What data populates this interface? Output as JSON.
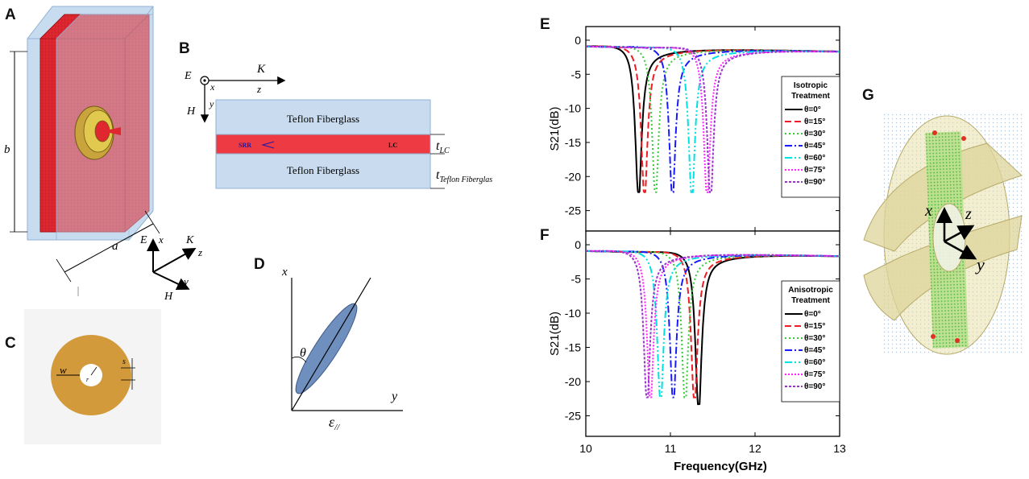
{
  "labels": {
    "A": "A",
    "B": "B",
    "C": "C",
    "D": "D",
    "E": "E",
    "F": "F",
    "G": "G"
  },
  "panelA": {
    "b": "b",
    "a": "a",
    "E": "E",
    "x": "x",
    "K": "K",
    "z": "z",
    "H": "H",
    "y": "y"
  },
  "panelB": {
    "E": "E",
    "x": "x",
    "K": "K",
    "z": "z",
    "H": "H",
    "y": "y",
    "layer_top": "Teflon Fiberglass",
    "layer_bottom": "Teflon Fiberglass",
    "srr": "SRR",
    "lc": "LC",
    "t_lc": "t",
    "t_lc_sub": "LC",
    "t_tf": "t",
    "t_tf_sub": "Teflon Fiberglas"
  },
  "panelC": {
    "w": "w",
    "r": "r",
    "s": "s"
  },
  "panelD": {
    "x": "x",
    "y": "y",
    "theta": "θ",
    "eps": "ε",
    "eps_sub": "//"
  },
  "panelG": {
    "x": "x",
    "z": "z",
    "y": "y"
  },
  "colors": {
    "lc": "#ee3b43",
    "substrate": "#c9dcef",
    "ring": "#d39a3c"
  },
  "chart_data": [
    {
      "type": "line",
      "panel": "E",
      "xlim": [
        10,
        13
      ],
      "ylim": [
        -28,
        2
      ],
      "xticks": [
        "10",
        "11",
        "12",
        "13"
      ],
      "yticks": [
        "0",
        "-5",
        "-10",
        "-15",
        "-20",
        "-25"
      ],
      "ylabel": "S21(dB)",
      "xlabel": "",
      "legend_title": [
        "Isotropic",
        "Treatment"
      ],
      "series": [
        {
          "name": "θ=0°",
          "f0": 10.62,
          "min": -22,
          "color": "#000000",
          "dash": ""
        },
        {
          "name": "θ=15°",
          "f0": 10.69,
          "min": -22,
          "color": "#ee1c24",
          "dash": "8,4"
        },
        {
          "name": "θ=30°",
          "f0": 10.82,
          "min": -22,
          "color": "#33cc33",
          "dash": "2,3"
        },
        {
          "name": "θ=45°",
          "f0": 11.02,
          "min": -22,
          "color": "#1a1aff",
          "dash": "9,3,2,3"
        },
        {
          "name": "θ=60°",
          "f0": 11.25,
          "min": -22,
          "color": "#00e0e0",
          "dash": "9,3,2,3,2,3"
        },
        {
          "name": "θ=75°",
          "f0": 11.43,
          "min": -22,
          "color": "#ff22ff",
          "dash": "2,2"
        },
        {
          "name": "θ=90°",
          "f0": 11.47,
          "min": -22,
          "color": "#9933cc",
          "dash": "3,2"
        }
      ]
    },
    {
      "type": "line",
      "panel": "F",
      "xlim": [
        10,
        13
      ],
      "ylim": [
        -28,
        2
      ],
      "xticks": [
        "10",
        "11",
        "12",
        "13"
      ],
      "yticks": [
        "0",
        "-5",
        "-10",
        "-15",
        "-20",
        "-25"
      ],
      "ylabel": "S21(dB)",
      "xlabel": "Frequency(GHz)",
      "legend_title": [
        "Anisotropic",
        "Treatment"
      ],
      "series": [
        {
          "name": "θ=0°",
          "f0": 11.33,
          "min": -23,
          "color": "#000000",
          "dash": ""
        },
        {
          "name": "θ=15°",
          "f0": 11.28,
          "min": -22,
          "color": "#ee1c24",
          "dash": "8,4"
        },
        {
          "name": "θ=30°",
          "f0": 11.17,
          "min": -22,
          "color": "#33cc33",
          "dash": "2,3"
        },
        {
          "name": "θ=45°",
          "f0": 11.03,
          "min": -22,
          "color": "#1a1aff",
          "dash": "9,3,2,3"
        },
        {
          "name": "θ=60°",
          "f0": 10.88,
          "min": -22,
          "color": "#00e0e0",
          "dash": "9,3,2,3,2,3"
        },
        {
          "name": "θ=75°",
          "f0": 10.76,
          "min": -22,
          "color": "#ff22ff",
          "dash": "2,2"
        },
        {
          "name": "θ=90°",
          "f0": 10.72,
          "min": -22,
          "color": "#9933cc",
          "dash": "3,2"
        }
      ]
    }
  ]
}
